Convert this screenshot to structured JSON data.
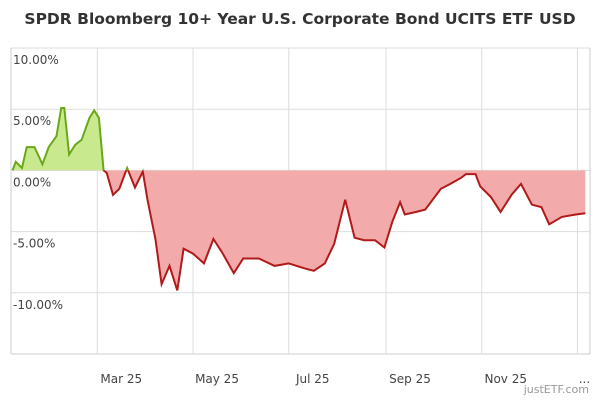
{
  "chart_data": {
    "type": "area",
    "title": "SPDR Bloomberg 10+ Year U.S. Corporate Bond UCITS ETF USD",
    "xlabel": "",
    "ylabel": "",
    "ylim": [
      -15,
      10
    ],
    "xlim": [
      "2025-01-05",
      "2026-01-09"
    ],
    "grid": true,
    "y_ticks": [
      {
        "value": 10,
        "label": "10.00%"
      },
      {
        "value": 5,
        "label": "5.00%"
      },
      {
        "value": 0,
        "label": "0.00%"
      },
      {
        "value": -5,
        "label": "-5.00%"
      },
      {
        "value": -10,
        "label": "-10.00%"
      }
    ],
    "x_ticks": [
      {
        "date": "2025-03-01",
        "label": "Mar 25"
      },
      {
        "date": "2025-05-01",
        "label": "May 25"
      },
      {
        "date": "2025-07-01",
        "label": "Jul 25"
      },
      {
        "date": "2025-09-01",
        "label": "Sep 25"
      },
      {
        "date": "2025-11-01",
        "label": "Nov 25"
      },
      {
        "date": "2026-01-01",
        "label": "..."
      }
    ],
    "colors": {
      "positive_line": "#6aa81a",
      "positive_fill": "#c9e98f",
      "negative_line": "#b01a1a",
      "negative_fill": "#f2aaaa",
      "grid": "#dddddd"
    },
    "series": [
      {
        "x": [
          "2025-01-06",
          "2025-01-08",
          "2025-01-12",
          "2025-01-15",
          "2025-01-20",
          "2025-01-25",
          "2025-01-29",
          "2025-02-03",
          "2025-02-06",
          "2025-02-08",
          "2025-02-11",
          "2025-02-15",
          "2025-02-19",
          "2025-02-24",
          "2025-02-27",
          "2025-03-02",
          "2025-03-05",
          "2025-03-07",
          "2025-03-11",
          "2025-03-15",
          "2025-03-20",
          "2025-03-25",
          "2025-03-30",
          "2025-04-02",
          "2025-04-07",
          "2025-04-11",
          "2025-04-16",
          "2025-04-21",
          "2025-04-25",
          "2025-05-01",
          "2025-05-08",
          "2025-05-14",
          "2025-05-20",
          "2025-05-27",
          "2025-06-02",
          "2025-06-12",
          "2025-06-22",
          "2025-07-01",
          "2025-07-11",
          "2025-07-17",
          "2025-07-24",
          "2025-07-30",
          "2025-08-06",
          "2025-08-12",
          "2025-08-18",
          "2025-08-25",
          "2025-08-31",
          "2025-09-05",
          "2025-09-10",
          "2025-09-13",
          "2025-09-20",
          "2025-09-26",
          "2025-10-06",
          "2025-10-12",
          "2025-10-19",
          "2025-10-22",
          "2025-10-28",
          "2025-10-31",
          "2025-11-07",
          "2025-11-13",
          "2025-11-20",
          "2025-11-26",
          "2025-12-03",
          "2025-12-09",
          "2025-12-14",
          "2025-12-22",
          "2025-12-31",
          "2026-01-06"
        ],
        "values": [
          0.0,
          0.7,
          0.2,
          1.9,
          1.9,
          0.5,
          1.9,
          2.8,
          5.1,
          5.1,
          1.3,
          2.1,
          2.5,
          4.3,
          4.9,
          4.3,
          0.0,
          -0.2,
          -2.0,
          -1.5,
          0.2,
          -1.4,
          -0.1,
          -2.4,
          -5.6,
          -9.3,
          -7.8,
          -9.8,
          -6.4,
          -6.8,
          -7.6,
          -5.6,
          -6.8,
          -8.4,
          -7.2,
          -7.2,
          -7.8,
          -7.6,
          -8.0,
          -8.2,
          -7.6,
          -6.0,
          -2.4,
          -5.5,
          -5.7,
          -5.7,
          -6.3,
          -4.2,
          -2.6,
          -3.6,
          -3.4,
          -3.2,
          -1.5,
          -1.1,
          -0.6,
          -0.3,
          -0.3,
          -1.3,
          -2.2,
          -3.4,
          -2.0,
          -1.1,
          -2.8,
          -3.0,
          -4.4,
          -3.8,
          -3.6,
          -3.5
        ]
      }
    ],
    "watermark": "justETF.com"
  }
}
